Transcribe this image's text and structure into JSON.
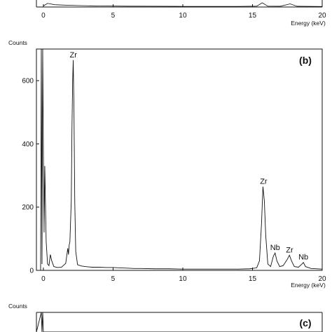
{
  "chart_data": [
    {
      "type": "line",
      "panel_label": "",
      "title": "",
      "xlabel": "Energy (keV)",
      "ylabel": "",
      "xlim": [
        -0.5,
        20
      ],
      "x_ticks": [
        0,
        5,
        10,
        15,
        20
      ],
      "y_ticks": [],
      "partial": "bottom strip only",
      "series": [
        {
          "points": [
            [
              0,
              10
            ],
            [
              0.3,
              35
            ],
            [
              0.8,
              22
            ],
            [
              1.5,
              18
            ],
            [
              2.5,
              14
            ],
            [
              4,
              10
            ],
            [
              6,
              8
            ],
            [
              8,
              7
            ],
            [
              10,
              6
            ],
            [
              12,
              6
            ],
            [
              14,
              6
            ],
            [
              15.3,
              8
            ],
            [
              15.7,
              40
            ],
            [
              16.1,
              8
            ],
            [
              17,
              7
            ],
            [
              17.7,
              30
            ],
            [
              18.2,
              7
            ],
            [
              20,
              5
            ]
          ]
        }
      ],
      "annotations": []
    },
    {
      "type": "line",
      "panel_label": "(b)",
      "title": "",
      "xlabel": "Energy (keV)",
      "ylabel": "Counts",
      "xlim": [
        -0.5,
        20
      ],
      "ylim": [
        0,
        700
      ],
      "x_ticks": [
        0,
        5,
        10,
        15,
        20
      ],
      "y_ticks": [
        0,
        200,
        400,
        600
      ],
      "grid": false,
      "legend": "none",
      "series": [
        {
          "points": [
            [
              -0.5,
              0
            ],
            [
              -0.2,
              0
            ],
            [
              -0.15,
              700
            ],
            [
              -0.1,
              20
            ],
            [
              -0.05,
              700
            ],
            [
              0,
              380
            ],
            [
              0.05,
              120
            ],
            [
              0.1,
              330
            ],
            [
              0.2,
              90
            ],
            [
              0.3,
              20
            ],
            [
              0.4,
              15
            ],
            [
              0.5,
              50
            ],
            [
              0.6,
              30
            ],
            [
              0.75,
              12
            ],
            [
              1.0,
              9
            ],
            [
              1.3,
              10
            ],
            [
              1.6,
              22
            ],
            [
              1.75,
              70
            ],
            [
              1.8,
              50
            ],
            [
              1.85,
              80
            ],
            [
              1.9,
              90
            ],
            [
              2.0,
              220
            ],
            [
              2.05,
              450
            ],
            [
              2.1,
              600
            ],
            [
              2.14,
              665
            ],
            [
              2.19,
              520
            ],
            [
              2.25,
              220
            ],
            [
              2.32,
              60
            ],
            [
              2.45,
              18
            ],
            [
              2.7,
              14
            ],
            [
              3.0,
              12
            ],
            [
              3.5,
              10
            ],
            [
              4.0,
              10
            ],
            [
              4.5,
              9
            ],
            [
              5.0,
              9
            ],
            [
              5.5,
              8
            ],
            [
              6.0,
              7
            ],
            [
              6.5,
              6
            ],
            [
              7.0,
              6
            ],
            [
              8.0,
              5
            ],
            [
              9.0,
              5
            ],
            [
              10.0,
              4
            ],
            [
              11.0,
              4
            ],
            [
              12.0,
              4
            ],
            [
              13.0,
              4
            ],
            [
              14.0,
              4
            ],
            [
              14.8,
              5
            ],
            [
              15.3,
              8
            ],
            [
              15.5,
              30
            ],
            [
              15.65,
              150
            ],
            [
              15.75,
              265
            ],
            [
              15.85,
              220
            ],
            [
              15.95,
              110
            ],
            [
              16.1,
              20
            ],
            [
              16.3,
              12
            ],
            [
              16.5,
              45
            ],
            [
              16.62,
              55
            ],
            [
              16.75,
              30
            ],
            [
              16.95,
              12
            ],
            [
              17.2,
              15
            ],
            [
              17.5,
              35
            ],
            [
              17.65,
              48
            ],
            [
              17.8,
              30
            ],
            [
              18.0,
              12
            ],
            [
              18.3,
              10
            ],
            [
              18.55,
              20
            ],
            [
              18.65,
              25
            ],
            [
              18.8,
              12
            ],
            [
              19.2,
              6
            ],
            [
              20,
              4
            ]
          ]
        }
      ],
      "annotations": [
        {
          "text": "Zr",
          "x": 2.15,
          "y": 665
        },
        {
          "text": "Zr",
          "x": 15.8,
          "y": 265
        },
        {
          "text": "Nb",
          "x": 16.62,
          "y": 55
        },
        {
          "text": "Zr",
          "x": 17.66,
          "y": 48
        },
        {
          "text": "Nb",
          "x": 18.65,
          "y": 25
        }
      ]
    },
    {
      "type": "line",
      "panel_label": "(c)",
      "title": "",
      "xlabel": "",
      "ylabel": "Counts",
      "xlim": [
        -0.5,
        20
      ],
      "partial": "top strip only",
      "series": [
        {
          "points": [
            [
              -0.5,
              0
            ],
            [
              -0.15,
              1000
            ],
            [
              -0.1,
              0
            ],
            [
              -0.05,
              1000
            ],
            [
              0,
              0
            ],
            [
              0.1,
              0
            ],
            [
              20,
              0
            ]
          ]
        }
      ],
      "annotations": []
    }
  ]
}
